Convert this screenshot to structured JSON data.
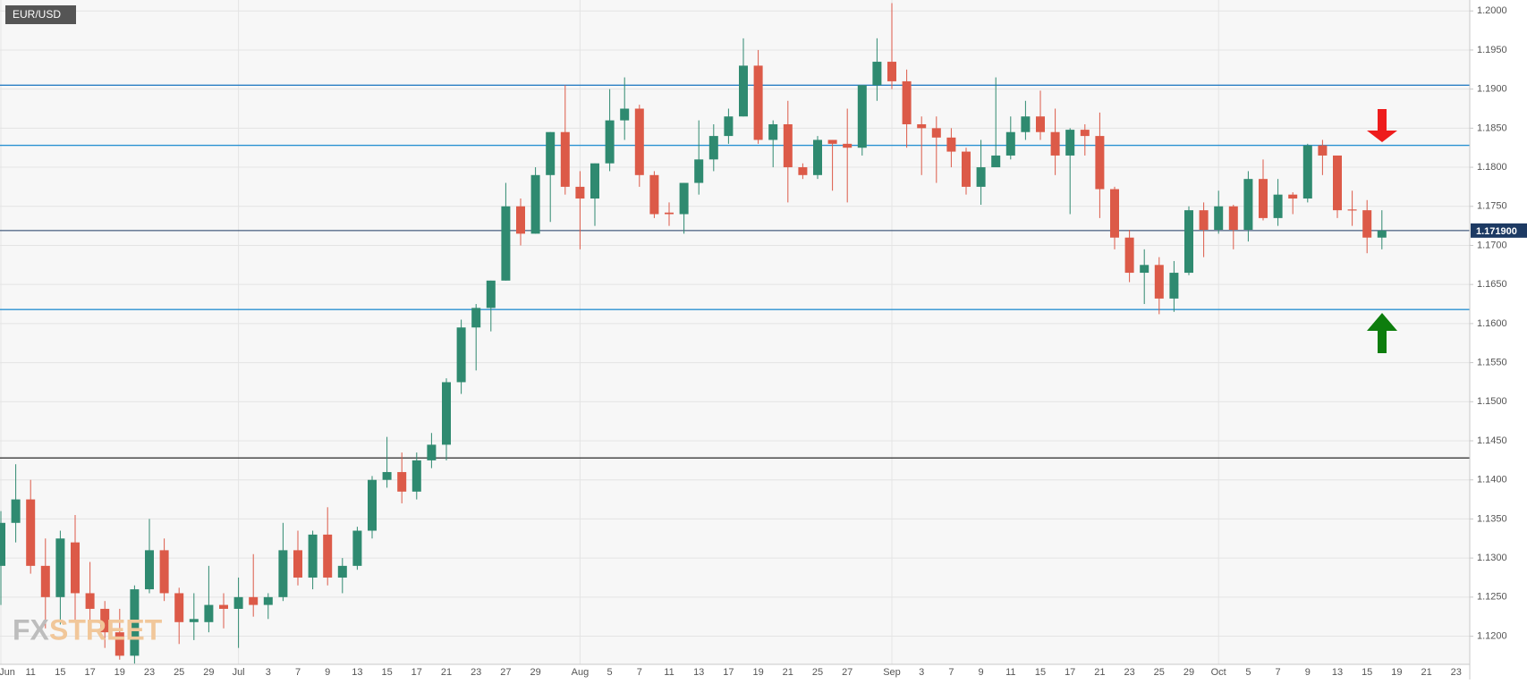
{
  "chart_data": {
    "type": "candlestick",
    "title": "EUR/USD",
    "watermark": [
      "FX",
      "STREET"
    ],
    "categories": [
      "Jun",
      null,
      "11",
      null,
      "15",
      null,
      "17",
      null,
      "19",
      null,
      "23",
      null,
      "25",
      null,
      "29",
      null,
      "Jul",
      null,
      "3",
      null,
      "7",
      null,
      "9",
      null,
      "13",
      null,
      "15",
      null,
      "17",
      null,
      "21",
      null,
      "23",
      null,
      "27",
      null,
      "29",
      null,
      null,
      "Aug",
      null,
      "5",
      null,
      "7",
      null,
      "11",
      null,
      "13",
      null,
      "17",
      null,
      "19",
      null,
      "21",
      null,
      "25",
      null,
      "27",
      null,
      null,
      "Sep",
      null,
      "3",
      null,
      "7",
      null,
      "9",
      null,
      "11",
      null,
      "15",
      null,
      "17",
      null,
      "21",
      null,
      "23",
      null,
      "25",
      null,
      "29",
      null,
      "Oct",
      null,
      "5",
      null,
      "7",
      null,
      "9",
      null,
      "13",
      null,
      "15",
      null,
      "19",
      null,
      "21",
      null,
      "23"
    ],
    "open": [
      1.129,
      1.1345,
      1.1375,
      1.129,
      1.125,
      1.132,
      1.1255,
      1.1235,
      1.1205,
      1.1175,
      1.126,
      1.131,
      1.1255,
      1.1218,
      1.1218,
      1.124,
      1.1235,
      1.125,
      1.124,
      1.125,
      1.131,
      1.1275,
      1.133,
      1.1275,
      1.129,
      1.1335,
      1.14,
      1.141,
      1.1385,
      1.1425,
      1.1445,
      1.1525,
      1.1595,
      1.162,
      1.1655,
      1.175,
      1.1715,
      1.179,
      1.1845,
      1.1775,
      1.176,
      1.1805,
      1.186,
      1.1875,
      1.179,
      1.1742,
      1.174,
      1.178,
      1.181,
      1.184,
      1.1865,
      1.193,
      1.1835,
      1.1855,
      1.18,
      1.179,
      1.1835,
      1.183,
      1.1825,
      1.1905,
      1.1935,
      1.191,
      1.1855,
      1.185,
      1.1838,
      1.182,
      1.1775,
      1.18,
      1.1815,
      1.1845,
      1.1865,
      1.1845,
      1.1815,
      1.1848,
      1.184,
      1.1772,
      1.171,
      1.1665,
      1.1675,
      1.1632,
      1.1665,
      1.1745,
      1.172,
      1.175,
      1.172,
      1.1785,
      1.1735,
      1.1765,
      1.176,
      1.1828,
      1.1815,
      1.1746,
      1.1745,
      1.171,
      null,
      null,
      null,
      null,
      null
    ],
    "high": [
      1.136,
      1.142,
      1.14,
      1.1325,
      1.1335,
      1.1355,
      1.1295,
      1.1245,
      1.1235,
      1.1265,
      1.135,
      1.1325,
      1.1262,
      1.1255,
      1.129,
      1.1255,
      1.1275,
      1.1305,
      1.1255,
      1.1345,
      1.1335,
      1.1335,
      1.1365,
      1.13,
      1.134,
      1.1405,
      1.1455,
      1.1435,
      1.1435,
      1.146,
      1.153,
      1.1605,
      1.1625,
      1.1655,
      1.178,
      1.176,
      1.18,
      1.1845,
      1.1905,
      1.1795,
      1.1805,
      1.19,
      1.1915,
      1.188,
      1.1795,
      1.1755,
      1.178,
      1.186,
      1.1855,
      1.1875,
      1.1965,
      1.195,
      1.186,
      1.1885,
      1.1805,
      1.184,
      1.1835,
      1.1875,
      1.1905,
      1.1965,
      1.201,
      1.1925,
      1.1865,
      1.1865,
      1.185,
      1.1825,
      1.1835,
      1.1915,
      1.1865,
      1.1885,
      1.1898,
      1.1875,
      1.185,
      1.1855,
      1.187,
      1.1775,
      1.172,
      1.1695,
      1.1685,
      1.168,
      1.175,
      1.1755,
      1.177,
      1.1752,
      1.1795,
      1.181,
      1.1785,
      1.1768,
      1.183,
      1.1835,
      1.1815,
      1.177,
      1.1758,
      1.1745,
      null,
      null,
      null,
      null,
      null
    ],
    "low": [
      1.124,
      1.132,
      1.128,
      1.121,
      1.1215,
      1.122,
      1.122,
      1.1185,
      1.117,
      1.1165,
      1.1255,
      1.1245,
      1.119,
      1.1195,
      1.1205,
      1.121,
      1.1185,
      1.1225,
      1.1222,
      1.1245,
      1.1265,
      1.126,
      1.1265,
      1.1255,
      1.1285,
      1.1325,
      1.139,
      1.137,
      1.1375,
      1.1415,
      1.1425,
      1.151,
      1.154,
      1.159,
      1.1655,
      1.17,
      1.1715,
      1.173,
      1.1765,
      1.1695,
      1.1725,
      1.1795,
      1.1835,
      1.1775,
      1.1735,
      1.1725,
      1.1715,
      1.1765,
      1.1795,
      1.183,
      1.1865,
      1.183,
      1.18,
      1.1755,
      1.1785,
      1.1785,
      1.177,
      1.1755,
      1.1815,
      1.1885,
      1.19,
      1.1825,
      1.179,
      1.178,
      1.18,
      1.1765,
      1.1752,
      1.1805,
      1.181,
      1.1835,
      1.1835,
      1.179,
      1.174,
      1.1815,
      1.1735,
      1.1695,
      1.1653,
      1.1625,
      1.1612,
      1.1615,
      1.1662,
      1.1685,
      1.1715,
      1.1695,
      1.1705,
      1.1732,
      1.1725,
      1.174,
      1.1755,
      1.179,
      1.1735,
      1.1725,
      1.169,
      1.1695,
      null,
      null,
      null,
      null,
      null
    ],
    "close": [
      1.1345,
      1.1375,
      1.129,
      1.125,
      1.1325,
      1.1255,
      1.1235,
      1.1205,
      1.1175,
      1.126,
      1.131,
      1.1255,
      1.1218,
      1.1222,
      1.124,
      1.1235,
      1.125,
      1.124,
      1.125,
      1.131,
      1.1275,
      1.133,
      1.1275,
      1.129,
      1.1335,
      1.14,
      1.141,
      1.1385,
      1.1425,
      1.1445,
      1.1525,
      1.1595,
      1.162,
      1.1655,
      1.175,
      1.1715,
      1.179,
      1.1845,
      1.1775,
      1.176,
      1.1805,
      1.186,
      1.1875,
      1.179,
      1.174,
      1.174,
      1.178,
      1.181,
      1.184,
      1.1865,
      1.193,
      1.1835,
      1.1855,
      1.18,
      1.179,
      1.1835,
      1.183,
      1.1825,
      1.1905,
      1.1935,
      1.191,
      1.1855,
      1.185,
      1.1838,
      1.182,
      1.1775,
      1.18,
      1.1815,
      1.1845,
      1.1865,
      1.1845,
      1.1815,
      1.1848,
      1.184,
      1.1772,
      1.171,
      1.1665,
      1.1675,
      1.1632,
      1.1665,
      1.1745,
      1.172,
      1.175,
      1.172,
      1.1785,
      1.1735,
      1.1765,
      1.176,
      1.1828,
      1.1815,
      1.1745,
      1.1745,
      1.171,
      1.1719,
      null,
      null,
      null,
      null,
      null
    ],
    "up_color": "#2f8a70",
    "down_color": "#dc5a48",
    "ylim": [
      1.1164,
      1.2014
    ],
    "yticks": [
      {
        "value": 1.12,
        "label": "1.1200"
      },
      {
        "value": 1.125,
        "label": "1.1250"
      },
      {
        "value": 1.13,
        "label": "1.1300"
      },
      {
        "value": 1.135,
        "label": "1.1350"
      },
      {
        "value": 1.14,
        "label": "1.1400"
      },
      {
        "value": 1.145,
        "label": "1.1450"
      },
      {
        "value": 1.15,
        "label": "1.1500"
      },
      {
        "value": 1.155,
        "label": "1.1550"
      },
      {
        "value": 1.16,
        "label": "1.1600"
      },
      {
        "value": 1.165,
        "label": "1.1650"
      },
      {
        "value": 1.17,
        "label": "1.1700"
      },
      {
        "value": 1.175,
        "label": "1.1750"
      },
      {
        "value": 1.18,
        "label": "1.1800"
      },
      {
        "value": 1.185,
        "label": "1.1850"
      },
      {
        "value": 1.19,
        "label": "1.1900"
      },
      {
        "value": 1.195,
        "label": "1.1950"
      },
      {
        "value": 1.2,
        "label": "1.2000"
      }
    ],
    "grid": true,
    "hlines": [
      {
        "value": 1.1905,
        "color": "#2b7fc4"
      },
      {
        "value": 1.1828,
        "color": "#2a92d2"
      },
      {
        "value": 1.1618,
        "color": "#2a92d2"
      },
      {
        "value": 1.1428,
        "color": "#3a3a3a"
      }
    ],
    "last_price": {
      "value": 1.1719,
      "label": "1.171900",
      "color": "#1d3a63"
    }
  }
}
